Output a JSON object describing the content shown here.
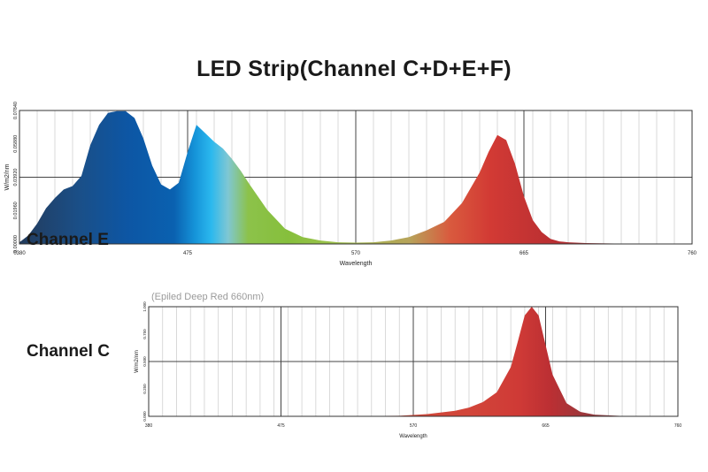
{
  "title": "LED Strip(Channel C+D+E+F)",
  "labels": {
    "top_overlap": "Channel E",
    "bottom": "Channel C",
    "bottom_subtitle": "(Epiled Deep Red 660nm)"
  },
  "chart_data": [
    {
      "type": "area",
      "title": "LED Strip(Channel C+D+E+F)",
      "xlabel": "Wavelength",
      "ylabel": "W/m2/nm",
      "xlim": [
        380,
        760
      ],
      "ylim": [
        0,
        0.0784
      ],
      "x_ticks": [
        "0380",
        "475",
        "570",
        "665",
        "760"
      ],
      "y_ticks": [
        "0.00000",
        "0.01960",
        "0.03920",
        "0.05880",
        "0.07840"
      ],
      "grid": true,
      "fill": "spectral",
      "x": [
        380,
        385,
        390,
        395,
        400,
        405,
        410,
        415,
        420,
        425,
        430,
        435,
        440,
        445,
        450,
        455,
        460,
        465,
        470,
        475,
        480,
        485,
        490,
        495,
        500,
        505,
        510,
        520,
        530,
        540,
        550,
        560,
        570,
        580,
        590,
        600,
        610,
        620,
        630,
        640,
        645,
        650,
        655,
        660,
        665,
        670,
        675,
        680,
        685,
        690,
        700,
        720,
        740,
        760
      ],
      "y": [
        0.001,
        0.005,
        0.012,
        0.021,
        0.027,
        0.032,
        0.034,
        0.04,
        0.058,
        0.07,
        0.077,
        0.078,
        0.078,
        0.074,
        0.062,
        0.046,
        0.035,
        0.032,
        0.036,
        0.054,
        0.07,
        0.065,
        0.06,
        0.056,
        0.05,
        0.043,
        0.035,
        0.02,
        0.009,
        0.004,
        0.002,
        0.001,
        0.0008,
        0.001,
        0.002,
        0.004,
        0.008,
        0.013,
        0.024,
        0.042,
        0.054,
        0.064,
        0.061,
        0.047,
        0.028,
        0.014,
        0.007,
        0.003,
        0.0015,
        0.001,
        0.0005,
        0.0002,
        0.0001,
        0.0001
      ]
    },
    {
      "type": "area",
      "title": "(Epiled Deep Red 660nm)",
      "xlabel": "Wavelength",
      "ylabel": "W/m2/nm",
      "xlim": [
        380,
        760
      ],
      "ylim": [
        0,
        1
      ],
      "x_ticks": [
        "380",
        "475",
        "570",
        "665",
        "760"
      ],
      "y_ticks": [
        "0.000",
        "0.250",
        "0.500",
        "0.750",
        "1.000"
      ],
      "grid": true,
      "fill": "spectral",
      "x": [
        380,
        500,
        560,
        580,
        600,
        610,
        620,
        630,
        640,
        645,
        650,
        655,
        660,
        665,
        670,
        680,
        690,
        700,
        720,
        760
      ],
      "y": [
        0,
        0,
        0.005,
        0.02,
        0.05,
        0.08,
        0.13,
        0.22,
        0.45,
        0.68,
        0.92,
        1.0,
        0.92,
        0.65,
        0.38,
        0.12,
        0.04,
        0.015,
        0.003,
        0
      ]
    }
  ]
}
